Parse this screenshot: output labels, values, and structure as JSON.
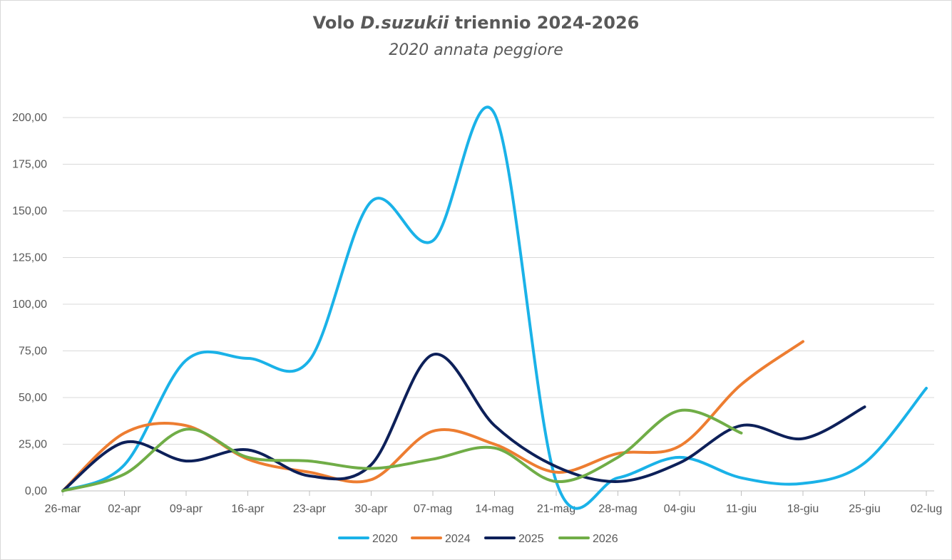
{
  "title": {
    "prefix": "Volo ",
    "italic": "D.suzukii",
    "suffix": " triennio 2024-2026"
  },
  "subtitle": "2020 annata peggiore",
  "chart_data": {
    "type": "line",
    "smooth": true,
    "categories": [
      "26-mar",
      "02-apr",
      "09-apr",
      "16-apr",
      "23-apr",
      "30-apr",
      "07-mag",
      "14-mag",
      "21-mag",
      "28-mag",
      "04-giu",
      "11-giu",
      "18-giu",
      "25-giu",
      "02-lug"
    ],
    "ylim": [
      0,
      200
    ],
    "yticks": [
      0,
      25,
      50,
      75,
      100,
      125,
      150,
      175,
      200
    ],
    "ytick_labels": [
      "0,00",
      "25,00",
      "50,00",
      "75,00",
      "100,00",
      "125,00",
      "150,00",
      "175,00",
      "200,00"
    ],
    "grid": true,
    "legend_position": "bottom",
    "series": [
      {
        "name": "2020",
        "color": "#1AB2E8",
        "values": [
          0,
          14,
          70,
          71,
          70,
          155,
          134,
          202,
          5,
          7,
          18,
          7,
          4,
          15,
          55
        ]
      },
      {
        "name": "2024",
        "color": "#ED7D31",
        "values": [
          0,
          31,
          35,
          17,
          10,
          6,
          32,
          25,
          10,
          20,
          24,
          57,
          80,
          null,
          null
        ]
      },
      {
        "name": "2025",
        "color": "#0D2059",
        "values": [
          0,
          26,
          16,
          22,
          8,
          14,
          73,
          35,
          13,
          5,
          15,
          35,
          28,
          45,
          null
        ]
      },
      {
        "name": "2026",
        "color": "#70AD47",
        "values": [
          0,
          9,
          33,
          18,
          16,
          12,
          17,
          23,
          5,
          18,
          43,
          31,
          null,
          null,
          null
        ]
      }
    ]
  }
}
